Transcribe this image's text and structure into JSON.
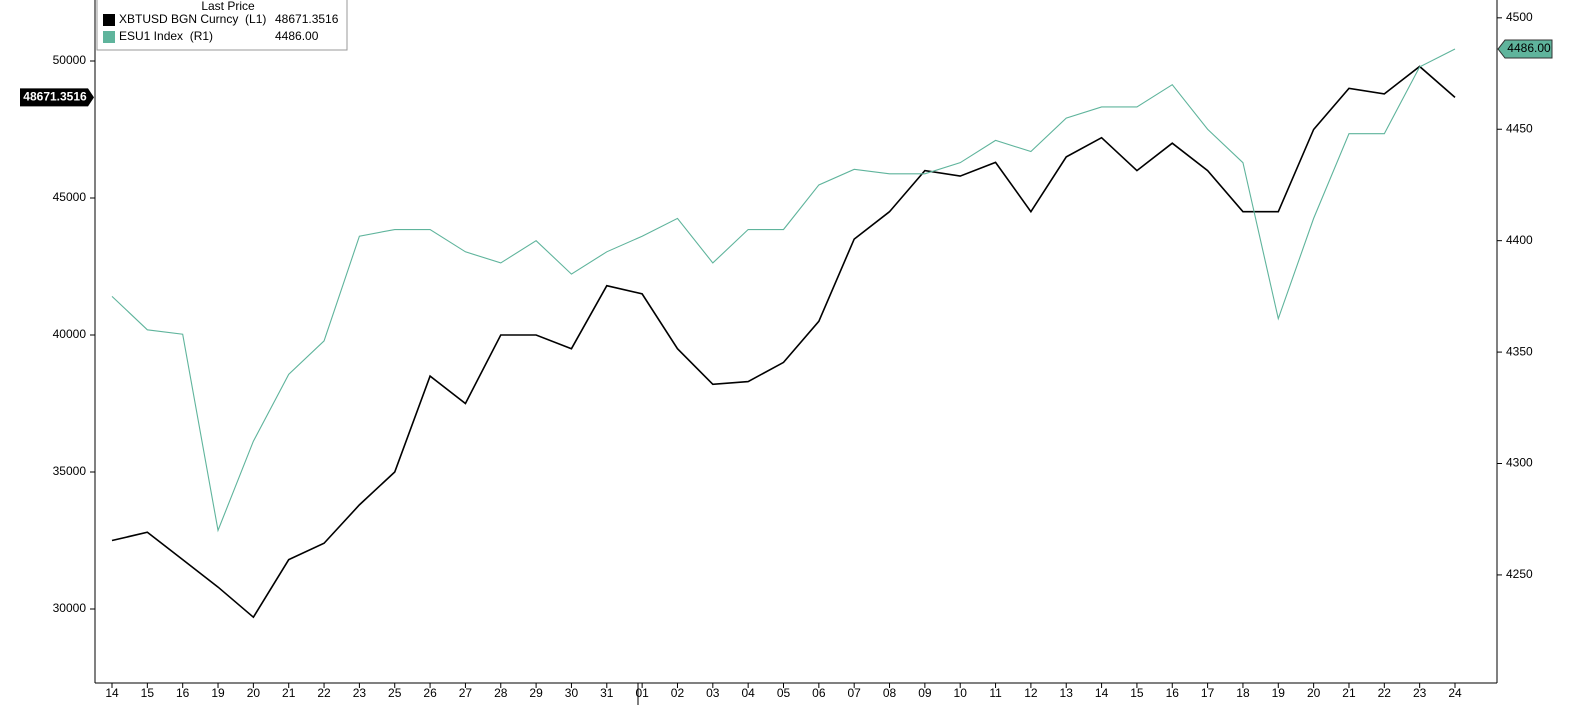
{
  "chart_data": {
    "type": "line",
    "legend_title": "Last Price",
    "categories": [
      "14",
      "15",
      "16",
      "19",
      "20",
      "21",
      "22",
      "23",
      "25",
      "26",
      "27",
      "28",
      "29",
      "30",
      "31",
      "01",
      "02",
      "03",
      "04",
      "05",
      "06",
      "07",
      "08",
      "09",
      "10",
      "11",
      "12",
      "13",
      "14",
      "15",
      "16",
      "17",
      "18",
      "19",
      "20",
      "21",
      "22",
      "23",
      "24"
    ],
    "series": [
      {
        "name": "XBTUSD BGN Curncy  (L1)",
        "color": "#000000",
        "last_label": "48671.3516",
        "values": [
          32500,
          32800,
          31800,
          30800,
          29700,
          31800,
          32400,
          33800,
          35000,
          38500,
          37500,
          40000,
          40000,
          39500,
          41800,
          41500,
          39500,
          38200,
          38300,
          39000,
          40500,
          43500,
          44500,
          46000,
          45800,
          46300,
          44500,
          46500,
          47200,
          46000,
          47000,
          46000,
          44500,
          44500,
          47500,
          49000,
          48800,
          49800,
          48671.3516
        ]
      },
      {
        "name": "ESU1 Index  (R1)",
        "color": "#5fb49c",
        "axis": "y2",
        "last_label": "4486.00",
        "values": [
          4375,
          4360,
          4358,
          4270,
          4310,
          4340,
          4355,
          4402,
          4405,
          4405,
          4395,
          4390,
          4400,
          4385,
          4395,
          4402,
          4410,
          4390,
          4405,
          4405,
          4425,
          4432,
          4430,
          4430,
          4435,
          4445,
          4440,
          4455,
          4460,
          4460,
          4470,
          4450,
          4435,
          4365,
          4410,
          4448,
          4448,
          4478,
          4486
        ]
      }
    ],
    "ylim": [
      27299,
      52226
    ],
    "yticks": [
      30000,
      35000,
      40000,
      45000,
      50000
    ],
    "y2lim": [
      4201.5,
      4508
    ],
    "y2ticks": [
      4250,
      4300,
      4350,
      4400,
      4450,
      4500
    ],
    "grid": false
  }
}
